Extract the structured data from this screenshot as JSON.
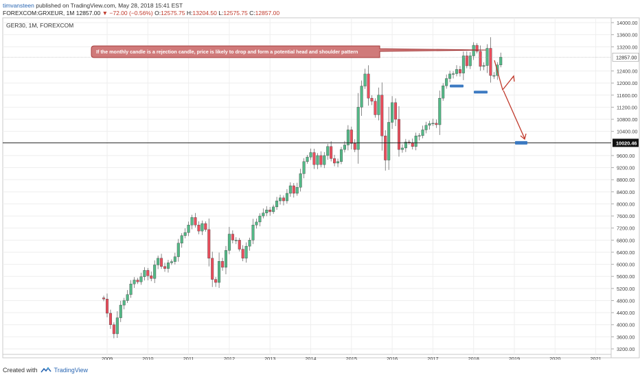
{
  "header": {
    "author": "timvansteen",
    "published": "published on TradingView.com, May 28, 2018 15:41 EST",
    "symbol": "FOREXCOM:GRXEUR, 1M",
    "last": "12857.00",
    "change_arrow": "▼",
    "change": "−72.00 (−0.56%)",
    "o_label": "O:",
    "o_value": "12575.75",
    "h_label": "H:",
    "h_value": "13204.50",
    "l_label": "L:",
    "l_value": "12575.75",
    "c_label": "C:",
    "c_value": "12857.00"
  },
  "footer": {
    "created_with": "Created with",
    "brand": "TradingView"
  },
  "chart_data": {
    "type": "candlestick",
    "title": "GER30, 1M, FOREXCOM",
    "colors": {
      "up": "#53b987",
      "down": "#eb4d5c",
      "annotation": "#c0392b",
      "support": "#3b79c1",
      "price_line": "#555555"
    },
    "ylim": [
      3100,
      14200
    ],
    "y_ticks": [
      3200,
      3600,
      4000,
      4400,
      4800,
      5200,
      5600,
      6000,
      6400,
      6800,
      7200,
      7600,
      8000,
      8400,
      8800,
      9200,
      9600,
      10400,
      10800,
      11200,
      11600,
      12000,
      12400,
      13200,
      13600,
      14000
    ],
    "x_tick_labels": [
      "2009",
      "2010",
      "2011",
      "2012",
      "2013",
      "2014",
      "2015",
      "2016",
      "2017",
      "2018",
      "2019",
      "2020",
      "2021"
    ],
    "last_price_label": "12857.00",
    "level_label": "10020.46",
    "horizontal_level": 10020.46,
    "annotation": "If the monthly candle is a rejection candle, price is likely to drop and form a potential head and shoulder pattern",
    "candles_close": [
      4850,
      4380,
      4000,
      3700,
      4230,
      4650,
      4800,
      5000,
      5350,
      5480,
      5420,
      5590,
      5800,
      5620,
      5530,
      5980,
      6200,
      5930,
      5860,
      6050,
      6090,
      6250,
      6700,
      6950,
      7050,
      7300,
      7550,
      7300,
      7100,
      7350,
      7150,
      6200,
      5500,
      5400,
      6100,
      5900,
      6460,
      7000,
      6800,
      6800,
      6500,
      6200,
      6600,
      6800,
      7300,
      7400,
      7600,
      7700,
      7800,
      7740,
      7900,
      8100,
      8200,
      8100,
      8350,
      8600,
      8350,
      8550,
      9000,
      9400,
      9550,
      9700,
      9300,
      9600,
      9300,
      9600,
      9900,
      9500,
      9350,
      9400,
      9800,
      9950,
      10450,
      10000,
      9800,
      11200,
      11900,
      12300,
      11500,
      11400,
      10950,
      11600,
      10250,
      9450,
      10700,
      11350,
      10800,
      9800,
      9850,
      10050,
      10030,
      9900,
      10250,
      10260,
      10450,
      10600,
      10660,
      10670,
      10620,
      11500,
      11910,
      12150,
      12300,
      12310,
      12450,
      12330,
      12900,
      12570,
      12900,
      13250,
      13050,
      12550,
      12580,
      13150,
      12250,
      12250,
      12600,
      12857
    ],
    "annotation_marks": {
      "left_shoulder_support": 11900,
      "right_shoulder_support": 11700,
      "target": 10020.46,
      "time_labels": [
        "2019"
      ]
    }
  }
}
